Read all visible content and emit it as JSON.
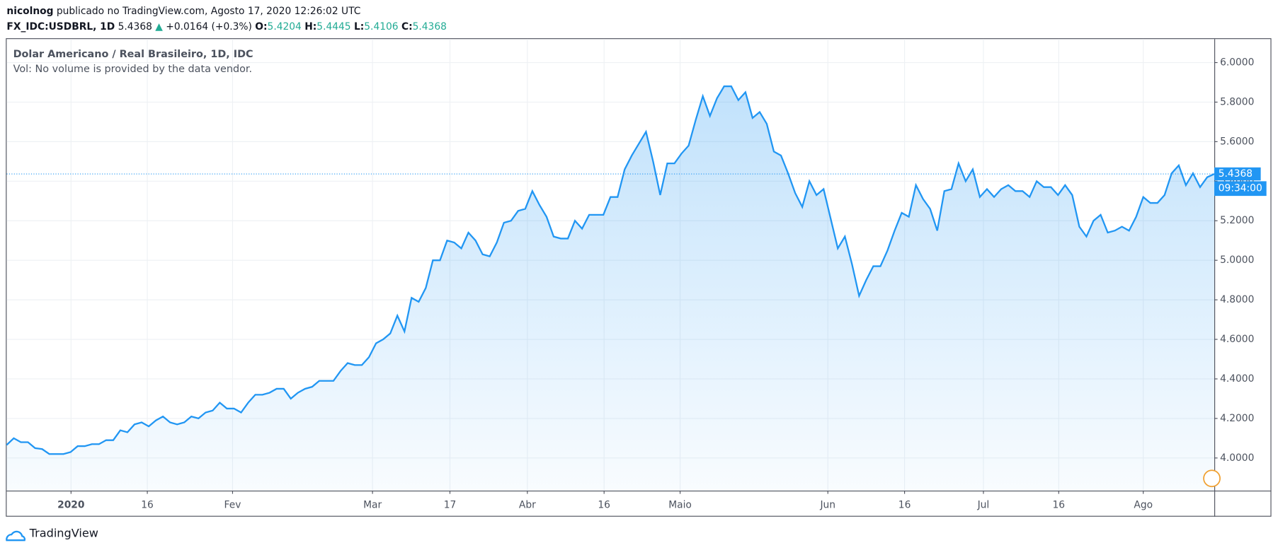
{
  "header": {
    "user": "nicolnog",
    "published": "publicado no TradingView.com, Agosto 17, 2020 12:26:02 UTC",
    "symbol": "FX_IDC:USDBRL, 1D",
    "price": 5.4368,
    "change": "+0.0164 (+0.3%)",
    "open_label": "O:",
    "open": 5.4204,
    "high_label": "H:",
    "high": 5.4445,
    "low_label": "L:",
    "low": 5.4106,
    "close_label": "C:",
    "close": 5.4368
  },
  "chart_data": {
    "type": "area",
    "title": "Dolar Americano / Real Brasileiro, 1D, IDC",
    "subtitle": "Vol: No volume is provided by the data vendor.",
    "color": "#2196f3",
    "grid": true,
    "values": [
      4.066,
      4.1,
      4.08,
      4.08,
      4.05,
      4.045,
      4.02,
      4.02,
      4.02,
      4.03,
      4.06,
      4.06,
      4.07,
      4.07,
      4.09,
      4.09,
      4.14,
      4.13,
      4.17,
      4.18,
      4.16,
      4.19,
      4.21,
      4.18,
      4.17,
      4.18,
      4.21,
      4.2,
      4.23,
      4.24,
      4.28,
      4.25,
      4.25,
      4.23,
      4.28,
      4.32,
      4.32,
      4.33,
      4.35,
      4.35,
      4.3,
      4.33,
      4.35,
      4.36,
      4.39,
      4.39,
      4.39,
      4.44,
      4.48,
      4.47,
      4.47,
      4.51,
      4.58,
      4.6,
      4.63,
      4.72,
      4.64,
      4.81,
      4.79,
      4.86,
      5.0,
      5.0,
      5.1,
      5.09,
      5.06,
      5.14,
      5.1,
      5.03,
      5.02,
      5.09,
      5.19,
      5.2,
      5.25,
      5.26,
      5.35,
      5.28,
      5.22,
      5.12,
      5.11,
      5.11,
      5.2,
      5.16,
      5.23,
      5.23,
      5.23,
      5.32,
      5.32,
      5.46,
      5.53,
      5.59,
      5.65,
      5.5,
      5.33,
      5.49,
      5.49,
      5.54,
      5.58,
      5.71,
      5.83,
      5.73,
      5.82,
      5.88,
      5.88,
      5.81,
      5.85,
      5.72,
      5.75,
      5.69,
      5.55,
      5.53,
      5.44,
      5.34,
      5.27,
      5.4,
      5.33,
      5.36,
      5.21,
      5.06,
      5.12,
      4.98,
      4.82,
      4.9,
      4.97,
      4.97,
      5.05,
      5.15,
      5.24,
      5.22,
      5.38,
      5.31,
      5.26,
      5.15,
      5.35,
      5.36,
      5.49,
      5.4,
      5.46,
      5.32,
      5.36,
      5.32,
      5.36,
      5.38,
      5.35,
      5.35,
      5.32,
      5.4,
      5.37,
      5.37,
      5.33,
      5.38,
      5.33,
      5.17,
      5.12,
      5.2,
      5.23,
      5.14,
      5.15,
      5.17,
      5.15,
      5.22,
      5.32,
      5.29,
      5.29,
      5.33,
      5.44,
      5.48,
      5.38,
      5.44,
      5.37,
      5.42,
      5.4368
    ],
    "xlim": [
      0,
      170
    ],
    "xticks": [
      {
        "value": 9.06,
        "label": "2020"
      },
      {
        "value": 19.8,
        "label": "16"
      },
      {
        "value": 31.8,
        "label": "Fev"
      },
      {
        "value": 51.5,
        "label": "Mar"
      },
      {
        "value": 62.4,
        "label": "17"
      },
      {
        "value": 73.3,
        "label": "Abr"
      },
      {
        "value": 84.1,
        "label": "16"
      },
      {
        "value": 94.8,
        "label": "Maio"
      },
      {
        "value": 115.6,
        "label": "Jun"
      },
      {
        "value": 126.4,
        "label": "16"
      },
      {
        "value": 137.5,
        "label": "Jul"
      },
      {
        "value": 148.1,
        "label": "16"
      },
      {
        "value": 160,
        "label": "Ago"
      }
    ],
    "ylim": [
      3.835,
      6.119
    ],
    "yticks": [
      {
        "value": 4.0,
        "label": "4.0000"
      },
      {
        "value": 4.2,
        "label": "4.2000"
      },
      {
        "value": 4.4,
        "label": "4.4000"
      },
      {
        "value": 4.6,
        "label": "4.6000"
      },
      {
        "value": 4.8,
        "label": "4.8000"
      },
      {
        "value": 5.0,
        "label": "5.0000"
      },
      {
        "value": 5.2,
        "label": "5.2000"
      },
      {
        "value": 5.4,
        "label": "5.4000"
      },
      {
        "value": 5.6,
        "label": "5.6000"
      },
      {
        "value": 5.8,
        "label": "5.8000"
      },
      {
        "value": 6.0,
        "label": "6.0000"
      }
    ],
    "last_price": 5.4368,
    "countdown": "09:34:00"
  },
  "footer": {
    "brand": "TradingView"
  }
}
